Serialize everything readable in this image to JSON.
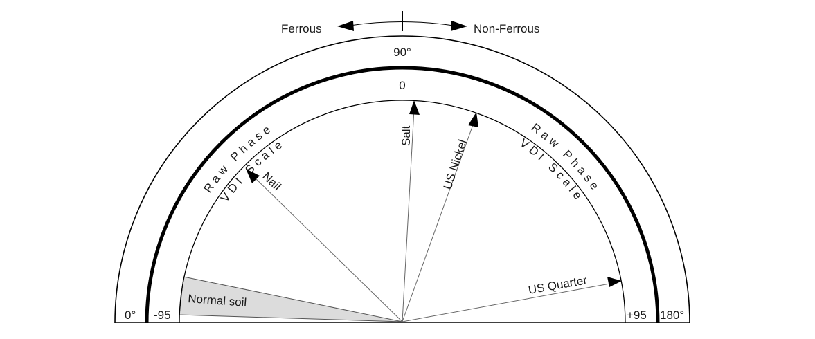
{
  "header": {
    "ferrous": "Ferrous",
    "non_ferrous": "Non-Ferrous"
  },
  "scale": {
    "raw_phase_top": "90°",
    "vdi_top": "0",
    "raw_phase_left": "0°",
    "raw_phase_right": "180°",
    "vdi_left": "-95",
    "vdi_right": "+95",
    "raw_phase_label_left": "Raw Phase",
    "raw_phase_label_right": "Raw Phase",
    "vdi_label_left": "VDI Scale",
    "vdi_label_right": "VDI Scale"
  },
  "targets": {
    "nail": "Nail",
    "salt": "Salt",
    "us_nickel": "US Nickel",
    "us_quarter": "US Quarter",
    "normal_soil": "Normal soil"
  },
  "colors": {
    "outline": "#000000",
    "ray": "#666666",
    "soil_fill": "#dcdcdc"
  }
}
